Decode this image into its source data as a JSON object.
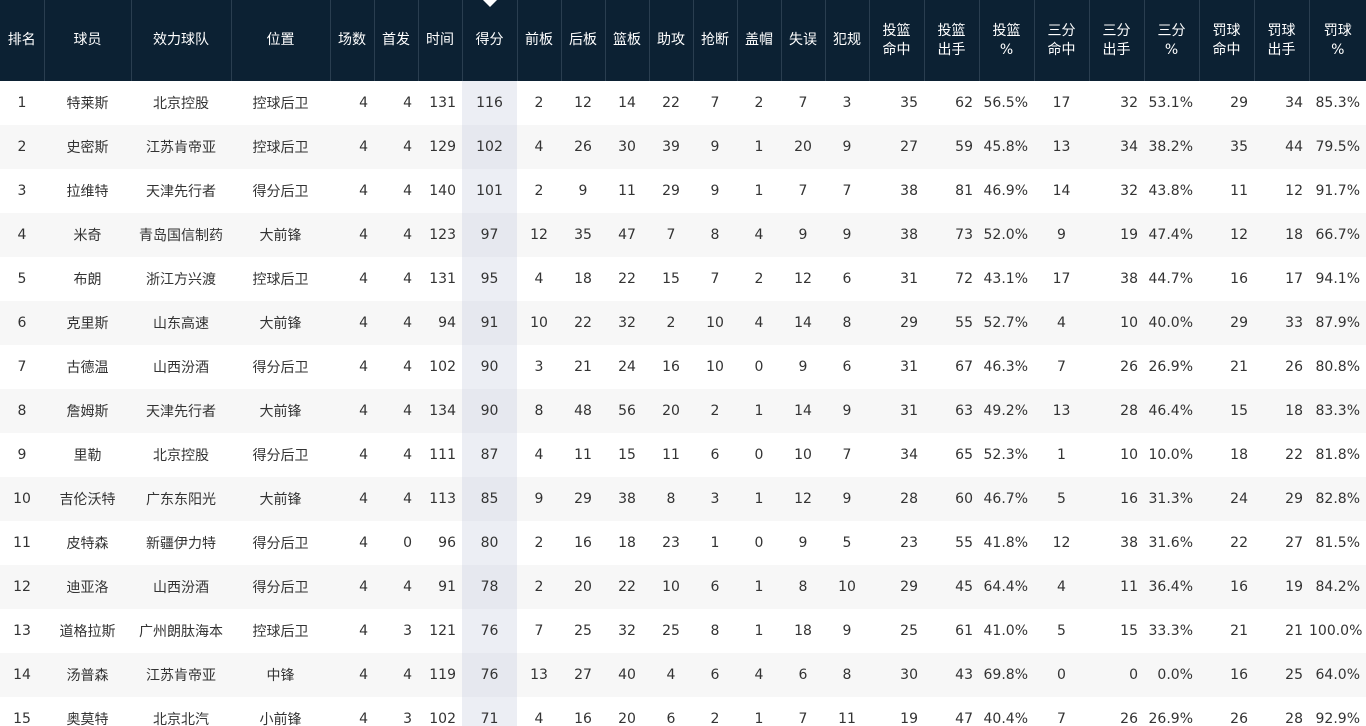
{
  "sort_indicator": "down-triangle",
  "columns": [
    "排名",
    "球员",
    "效力球队",
    "位置",
    "场数",
    "首发",
    "时间",
    "得分",
    "前板",
    "后板",
    "篮板",
    "助攻",
    "抢断",
    "盖帽",
    "失误",
    "犯规",
    "投篮\n命中",
    "投篮\n出手",
    "投篮\n%",
    "三分\n命中",
    "三分\n出手",
    "三分\n%",
    "罚球\n命中",
    "罚球\n出手",
    "罚球\n%"
  ],
  "sorted_column": 7,
  "rows": [
    [
      "1",
      "特莱斯",
      "北京控股",
      "控球后卫",
      "4",
      "4",
      "131",
      "116",
      "2",
      "12",
      "14",
      "22",
      "7",
      "2",
      "7",
      "3",
      "35",
      "62",
      "56.5%",
      "17",
      "32",
      "53.1%",
      "29",
      "34",
      "85.3%"
    ],
    [
      "2",
      "史密斯",
      "江苏肯帝亚",
      "控球后卫",
      "4",
      "4",
      "129",
      "102",
      "4",
      "26",
      "30",
      "39",
      "9",
      "1",
      "20",
      "9",
      "27",
      "59",
      "45.8%",
      "13",
      "34",
      "38.2%",
      "35",
      "44",
      "79.5%"
    ],
    [
      "3",
      "拉维特",
      "天津先行者",
      "得分后卫",
      "4",
      "4",
      "140",
      "101",
      "2",
      "9",
      "11",
      "29",
      "9",
      "1",
      "7",
      "7",
      "38",
      "81",
      "46.9%",
      "14",
      "32",
      "43.8%",
      "11",
      "12",
      "91.7%"
    ],
    [
      "4",
      "米奇",
      "青岛国信制药",
      "大前锋",
      "4",
      "4",
      "123",
      "97",
      "12",
      "35",
      "47",
      "7",
      "8",
      "4",
      "9",
      "9",
      "38",
      "73",
      "52.0%",
      "9",
      "19",
      "47.4%",
      "12",
      "18",
      "66.7%"
    ],
    [
      "5",
      "布朗",
      "浙江方兴渡",
      "控球后卫",
      "4",
      "4",
      "131",
      "95",
      "4",
      "18",
      "22",
      "15",
      "7",
      "2",
      "12",
      "6",
      "31",
      "72",
      "43.1%",
      "17",
      "38",
      "44.7%",
      "16",
      "17",
      "94.1%"
    ],
    [
      "6",
      "克里斯",
      "山东高速",
      "大前锋",
      "4",
      "4",
      "94",
      "91",
      "10",
      "22",
      "32",
      "2",
      "10",
      "4",
      "14",
      "8",
      "29",
      "55",
      "52.7%",
      "4",
      "10",
      "40.0%",
      "29",
      "33",
      "87.9%"
    ],
    [
      "7",
      "古德温",
      "山西汾酒",
      "得分后卫",
      "4",
      "4",
      "102",
      "90",
      "3",
      "21",
      "24",
      "16",
      "10",
      "0",
      "9",
      "6",
      "31",
      "67",
      "46.3%",
      "7",
      "26",
      "26.9%",
      "21",
      "26",
      "80.8%"
    ],
    [
      "8",
      "詹姆斯",
      "天津先行者",
      "大前锋",
      "4",
      "4",
      "134",
      "90",
      "8",
      "48",
      "56",
      "20",
      "2",
      "1",
      "14",
      "9",
      "31",
      "63",
      "49.2%",
      "13",
      "28",
      "46.4%",
      "15",
      "18",
      "83.3%"
    ],
    [
      "9",
      "里勒",
      "北京控股",
      "得分后卫",
      "4",
      "4",
      "111",
      "87",
      "4",
      "11",
      "15",
      "11",
      "6",
      "0",
      "10",
      "7",
      "34",
      "65",
      "52.3%",
      "1",
      "10",
      "10.0%",
      "18",
      "22",
      "81.8%"
    ],
    [
      "10",
      "吉伦沃特",
      "广东东阳光",
      "大前锋",
      "4",
      "4",
      "113",
      "85",
      "9",
      "29",
      "38",
      "8",
      "3",
      "1",
      "12",
      "9",
      "28",
      "60",
      "46.7%",
      "5",
      "16",
      "31.3%",
      "24",
      "29",
      "82.8%"
    ],
    [
      "11",
      "皮特森",
      "新疆伊力特",
      "得分后卫",
      "4",
      "0",
      "96",
      "80",
      "2",
      "16",
      "18",
      "23",
      "1",
      "0",
      "9",
      "5",
      "23",
      "55",
      "41.8%",
      "12",
      "38",
      "31.6%",
      "22",
      "27",
      "81.5%"
    ],
    [
      "12",
      "迪亚洛",
      "山西汾酒",
      "得分后卫",
      "4",
      "4",
      "91",
      "78",
      "2",
      "20",
      "22",
      "10",
      "6",
      "1",
      "8",
      "10",
      "29",
      "45",
      "64.4%",
      "4",
      "11",
      "36.4%",
      "16",
      "19",
      "84.2%"
    ],
    [
      "13",
      "道格拉斯",
      "广州朗肽海本",
      "控球后卫",
      "4",
      "3",
      "121",
      "76",
      "7",
      "25",
      "32",
      "25",
      "8",
      "1",
      "18",
      "9",
      "25",
      "61",
      "41.0%",
      "5",
      "15",
      "33.3%",
      "21",
      "21",
      "100.0%"
    ],
    [
      "14",
      "汤普森",
      "江苏肯帝亚",
      "中锋",
      "4",
      "4",
      "119",
      "76",
      "13",
      "27",
      "40",
      "4",
      "6",
      "4",
      "6",
      "8",
      "30",
      "43",
      "69.8%",
      "0",
      "0",
      "0.0%",
      "16",
      "25",
      "64.0%"
    ],
    [
      "15",
      "奥莫特",
      "北京北汽",
      "小前锋",
      "4",
      "3",
      "102",
      "71",
      "4",
      "16",
      "20",
      "6",
      "2",
      "1",
      "7",
      "11",
      "19",
      "47",
      "40.4%",
      "7",
      "26",
      "26.9%",
      "26",
      "28",
      "92.9%"
    ]
  ]
}
